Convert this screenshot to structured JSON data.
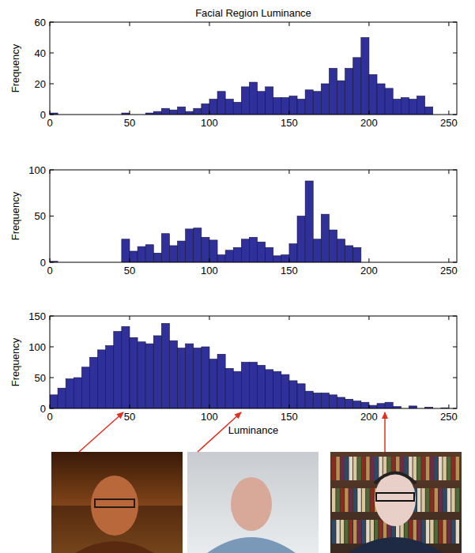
{
  "chart_data": [
    {
      "type": "histogram",
      "title": "Facial Region Luminance",
      "ylabel": "Frequency",
      "bins": [
        0,
        5,
        10,
        15,
        20,
        25,
        30,
        35,
        40,
        45,
        50,
        55,
        60,
        65,
        70,
        75,
        80,
        85,
        90,
        95,
        100,
        105,
        110,
        115,
        120,
        125,
        130,
        135,
        140,
        145,
        150,
        155,
        160,
        165,
        170,
        175,
        180,
        185,
        190,
        195,
        200,
        205,
        210,
        215,
        220,
        225,
        230,
        235,
        240,
        245,
        250,
        255
      ],
      "values": [
        1,
        0,
        0,
        0,
        0,
        0,
        0,
        0,
        0,
        1,
        0,
        0,
        1,
        2,
        4,
        3,
        5,
        2,
        4,
        7,
        10,
        15,
        10,
        8,
        18,
        21,
        15,
        18,
        11,
        11,
        12,
        10,
        16,
        15,
        20,
        30,
        22,
        30,
        37,
        50,
        26,
        20,
        17,
        10,
        11,
        10,
        12,
        5,
        0,
        0,
        0
      ],
      "color": "#30309a",
      "xlim": [
        0,
        255
      ],
      "ylim": [
        0,
        60
      ],
      "xticks": [
        0,
        50,
        100,
        150,
        200,
        250
      ],
      "yticks": [
        0,
        20,
        40,
        60
      ]
    },
    {
      "type": "histogram",
      "ylabel": "Frequency",
      "bins": [
        0,
        5,
        10,
        15,
        20,
        25,
        30,
        35,
        40,
        45,
        50,
        55,
        60,
        65,
        70,
        75,
        80,
        85,
        90,
        95,
        100,
        105,
        110,
        115,
        120,
        125,
        130,
        135,
        140,
        145,
        150,
        155,
        160,
        165,
        170,
        175,
        180,
        185,
        190,
        195,
        200,
        205,
        210,
        215,
        220,
        225,
        230,
        235,
        240,
        245,
        250,
        255
      ],
      "values": [
        1,
        0,
        0,
        0,
        0,
        0,
        0,
        0,
        0,
        25,
        12,
        17,
        19,
        10,
        31,
        18,
        23,
        36,
        37,
        27,
        24,
        8,
        13,
        16,
        25,
        27,
        22,
        16,
        7,
        8,
        20,
        50,
        88,
        25,
        52,
        35,
        25,
        18,
        16,
        0,
        0,
        0,
        0,
        0,
        0,
        0,
        0,
        0,
        0,
        0,
        0
      ],
      "color": "#30309a",
      "xlim": [
        0,
        255
      ],
      "ylim": [
        0,
        100
      ],
      "xticks": [
        0,
        50,
        100,
        150,
        200,
        250
      ],
      "yticks": [
        0,
        50,
        100
      ]
    },
    {
      "type": "histogram",
      "ylabel": "Frequency",
      "xlabel": "Luminance",
      "bins": [
        0,
        5,
        10,
        15,
        20,
        25,
        30,
        35,
        40,
        45,
        50,
        55,
        60,
        65,
        70,
        75,
        80,
        85,
        90,
        95,
        100,
        105,
        110,
        115,
        120,
        125,
        130,
        135,
        140,
        145,
        150,
        155,
        160,
        165,
        170,
        175,
        180,
        185,
        190,
        195,
        200,
        205,
        210,
        215,
        220,
        225,
        230,
        235,
        240,
        245,
        250,
        255
      ],
      "values": [
        22,
        33,
        48,
        50,
        67,
        83,
        95,
        102,
        125,
        133,
        115,
        108,
        105,
        118,
        138,
        110,
        98,
        105,
        98,
        100,
        80,
        88,
        65,
        60,
        75,
        75,
        70,
        63,
        60,
        55,
        45,
        40,
        28,
        25,
        25,
        22,
        18,
        15,
        12,
        10,
        5,
        8,
        10,
        3,
        0,
        4,
        0,
        2,
        0,
        1,
        0
      ],
      "color": "#30309a",
      "xlim": [
        0,
        255
      ],
      "ylim": [
        0,
        150
      ],
      "xticks": [
        0,
        50,
        100,
        150,
        200,
        250
      ],
      "yticks": [
        0,
        50,
        100,
        150
      ]
    }
  ]
}
